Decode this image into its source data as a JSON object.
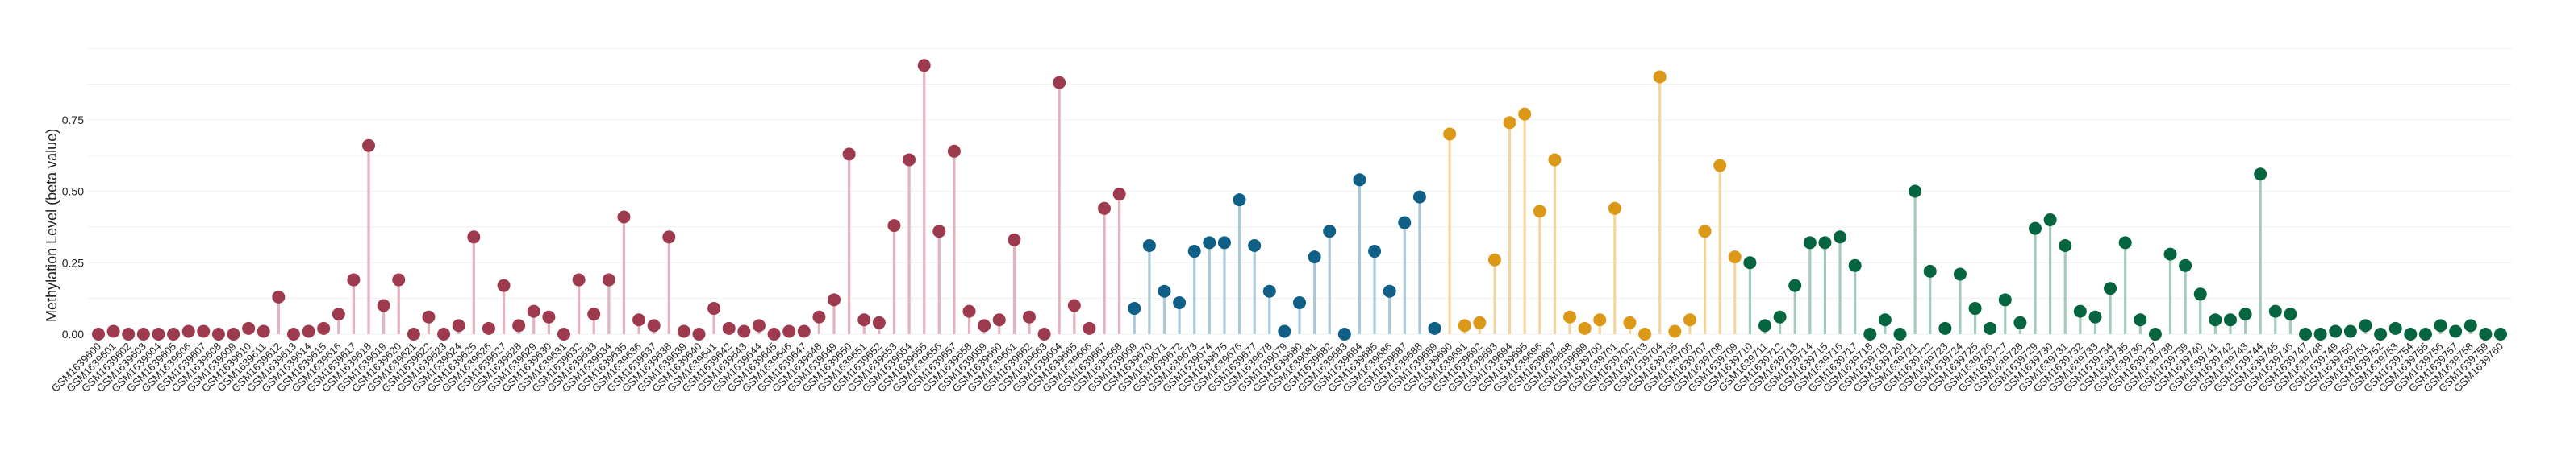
{
  "chart_data": {
    "type": "lollipop",
    "title": "",
    "xlabel": "",
    "ylabel": "Methylation Level (beta value)",
    "ylim": [
      0,
      1.0
    ],
    "yticks": [
      0.0,
      0.25,
      0.5,
      0.75
    ],
    "ytick_labels": [
      "0.00",
      "0.25",
      "0.50",
      "0.75"
    ],
    "grid": true,
    "legend": "none",
    "groups": [
      {
        "color": "#9e3a4e",
        "stem_color": "#e4b3bd",
        "start": 0,
        "end": 68
      },
      {
        "color": "#0f5f86",
        "stem_color": "#a9c9d9",
        "start": 69,
        "end": 89
      },
      {
        "color": "#dc9817",
        "stem_color": "#f3d69e",
        "start": 90,
        "end": 109
      },
      {
        "color": "#04653f",
        "stem_color": "#a4cbbb",
        "start": 110,
        "end": 160
      }
    ],
    "categories": [
      "GSM1639600",
      "GSM1639601",
      "GSM1639602",
      "GSM1639603",
      "GSM1639604",
      "GSM1639605",
      "GSM1639606",
      "GSM1639607",
      "GSM1639608",
      "GSM1639609",
      "GSM1639610",
      "GSM1639611",
      "GSM1639612",
      "GSM1639613",
      "GSM1639614",
      "GSM1639615",
      "GSM1639616",
      "GSM1639617",
      "GSM1639618",
      "GSM1639619",
      "GSM1639620",
      "GSM1639621",
      "GSM1639622",
      "GSM1639623",
      "GSM1639624",
      "GSM1639625",
      "GSM1639626",
      "GSM1639627",
      "GSM1639628",
      "GSM1639629",
      "GSM1639630",
      "GSM1639631",
      "GSM1639632",
      "GSM1639633",
      "GSM1639634",
      "GSM1639635",
      "GSM1639636",
      "GSM1639637",
      "GSM1639638",
      "GSM1639639",
      "GSM1639640",
      "GSM1639641",
      "GSM1639642",
      "GSM1639643",
      "GSM1639644",
      "GSM1639645",
      "GSM1639646",
      "GSM1639647",
      "GSM1639648",
      "GSM1639649",
      "GSM1639650",
      "GSM1639651",
      "GSM1639652",
      "GSM1639653",
      "GSM1639654",
      "GSM1639655",
      "GSM1639656",
      "GSM1639657",
      "GSM1639658",
      "GSM1639659",
      "GSM1639660",
      "GSM1639661",
      "GSM1639662",
      "GSM1639663",
      "GSM1639664",
      "GSM1639665",
      "GSM1639666",
      "GSM1639667",
      "GSM1639668",
      "GSM1639669",
      "GSM1639670",
      "GSM1639671",
      "GSM1639672",
      "GSM1639673",
      "GSM1639674",
      "GSM1639675",
      "GSM1639676",
      "GSM1639677",
      "GSM1639678",
      "GSM1639679",
      "GSM1639680",
      "GSM1639681",
      "GSM1639682",
      "GSM1639683",
      "GSM1639684",
      "GSM1639685",
      "GSM1639686",
      "GSM1639687",
      "GSM1639688",
      "GSM1639689",
      "GSM1639690",
      "GSM1639691",
      "GSM1639692",
      "GSM1639693",
      "GSM1639694",
      "GSM1639695",
      "GSM1639696",
      "GSM1639697",
      "GSM1639698",
      "GSM1639699",
      "GSM1639700",
      "GSM1639701",
      "GSM1639702",
      "GSM1639703",
      "GSM1639704",
      "GSM1639705",
      "GSM1639706",
      "GSM1639707",
      "GSM1639708",
      "GSM1639709",
      "GSM1639710",
      "GSM1639711",
      "GSM1639712",
      "GSM1639713",
      "GSM1639714",
      "GSM1639715",
      "GSM1639716",
      "GSM1639717",
      "GSM1639718",
      "GSM1639719",
      "GSM1639720",
      "GSM1639721",
      "GSM1639722",
      "GSM1639723",
      "GSM1639724",
      "GSM1639725",
      "GSM1639726",
      "GSM1639727",
      "GSM1639728",
      "GSM1639729",
      "GSM1639730",
      "GSM1639731",
      "GSM1639732",
      "GSM1639733",
      "GSM1639734",
      "GSM1639735",
      "GSM1639736",
      "GSM1639737",
      "GSM1639738",
      "GSM1639739",
      "GSM1639740",
      "GSM1639741",
      "GSM1639742",
      "GSM1639743",
      "GSM1639744",
      "GSM1639745",
      "GSM1639746",
      "GSM1639747",
      "GSM1639748",
      "GSM1639749",
      "GSM1639750",
      "GSM1639751",
      "GSM1639752",
      "GSM1639753",
      "GSM1639754",
      "GSM1639755",
      "GSM1639756",
      "GSM1639757",
      "GSM1639758",
      "GSM1639759",
      "GSM1639760"
    ],
    "values": [
      0.0,
      0.01,
      0.0,
      0.0,
      0.0,
      0.0,
      0.01,
      0.01,
      0.0,
      0.0,
      0.02,
      0.01,
      0.13,
      0.0,
      0.01,
      0.02,
      0.07,
      0.19,
      0.66,
      0.1,
      0.19,
      0.0,
      0.06,
      0.0,
      0.03,
      0.34,
      0.02,
      0.17,
      0.03,
      0.08,
      0.06,
      0.0,
      0.19,
      0.07,
      0.19,
      0.41,
      0.05,
      0.03,
      0.34,
      0.01,
      0.0,
      0.09,
      0.02,
      0.01,
      0.03,
      0.0,
      0.01,
      0.01,
      0.06,
      0.12,
      0.63,
      0.05,
      0.04,
      0.38,
      0.61,
      0.94,
      0.36,
      0.64,
      0.08,
      0.03,
      0.05,
      0.33,
      0.06,
      0.0,
      0.88,
      0.1,
      0.02,
      0.44,
      0.49,
      0.09,
      0.31,
      0.15,
      0.11,
      0.29,
      0.32,
      0.32,
      0.47,
      0.31,
      0.15,
      0.01,
      0.11,
      0.27,
      0.36,
      0.0,
      0.54,
      0.29,
      0.15,
      0.39,
      0.48,
      0.02,
      0.7,
      0.03,
      0.04,
      0.26,
      0.74,
      0.77,
      0.43,
      0.61,
      0.06,
      0.02,
      0.05,
      0.44,
      0.04,
      0.0,
      0.9,
      0.01,
      0.05,
      0.36,
      0.59,
      0.27,
      0.25,
      0.03,
      0.06,
      0.17,
      0.32,
      0.32,
      0.34,
      0.24,
      0.0,
      0.05,
      0.0,
      0.5,
      0.22,
      0.02,
      0.21,
      0.09,
      0.02,
      0.12,
      0.04,
      0.37,
      0.4,
      0.31,
      0.08,
      0.06,
      0.16,
      0.32,
      0.05,
      0.0,
      0.28,
      0.24,
      0.14,
      0.05,
      0.05,
      0.07,
      0.56,
      0.08,
      0.07,
      0.0,
      0.0,
      0.01,
      0.01,
      0.03,
      0.0,
      0.02,
      0.0,
      0.0,
      0.03,
      0.01,
      0.03,
      0.0,
      0.0
    ]
  }
}
